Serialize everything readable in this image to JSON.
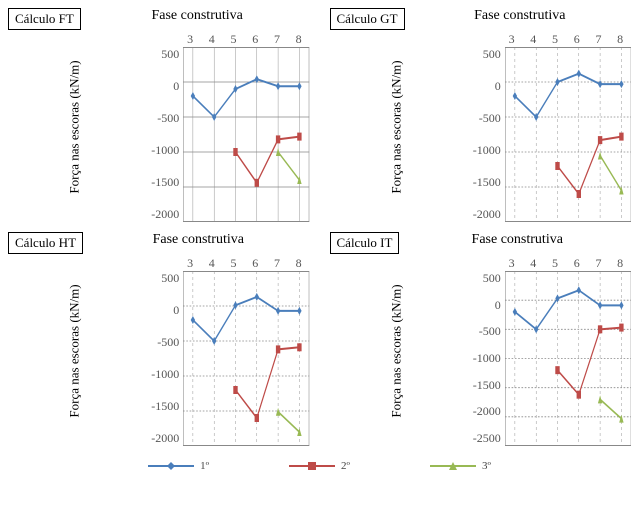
{
  "legend": {
    "labels": [
      "1º",
      "2º",
      "3º"
    ],
    "colors": {
      "s1": "#4a7ebb",
      "s2": "#be4b48",
      "s3": "#98b954"
    },
    "marker": {
      "s1": "diamond",
      "s2": "square",
      "s3": "triangle"
    }
  },
  "common": {
    "xlabel": "Fase construtiva",
    "ylabel": "Força nas escoras (kN/m)",
    "x": [
      3,
      4,
      5,
      6,
      7,
      8
    ],
    "axis_color": "#888888",
    "tick_color": "#595959",
    "grid_color": "#888888",
    "grid_dash": "3,3",
    "label_fontsize": 13,
    "tick_fontsize": 12,
    "badge_fontsize": 13,
    "line_width": 2,
    "marker_size": 5,
    "background": "#ffffff"
  },
  "panels": [
    {
      "id": "FT",
      "title": "Cálculo FT",
      "ylim": [
        -2000,
        500
      ],
      "ystep": 500,
      "grid_style": "solid",
      "series": [
        {
          "k": "s1",
          "pts": {
            "3": -200,
            "4": -500,
            "5": -100,
            "6": 40,
            "7": -60,
            "8": -60
          }
        },
        {
          "k": "s2",
          "pts": {
            "5": -1000,
            "6": -1440,
            "7": -820,
            "8": -780
          }
        },
        {
          "k": "s3",
          "pts": {
            "7": -1000,
            "8": -1400
          }
        }
      ]
    },
    {
      "id": "GT",
      "title": "Cálculo GT",
      "ylim": [
        -2000,
        500
      ],
      "ystep": 500,
      "grid_style": "dashed",
      "series": [
        {
          "k": "s1",
          "pts": {
            "3": -200,
            "4": -500,
            "5": 0,
            "6": 120,
            "7": -30,
            "8": -30
          }
        },
        {
          "k": "s2",
          "pts": {
            "5": -1200,
            "6": -1600,
            "7": -830,
            "8": -780
          }
        },
        {
          "k": "s3",
          "pts": {
            "7": -1050,
            "8": -1550
          }
        }
      ]
    },
    {
      "id": "HT",
      "title": "Cálculo HT",
      "ylim": [
        -2000,
        500
      ],
      "ystep": 500,
      "grid_style": "dashed",
      "series": [
        {
          "k": "s1",
          "pts": {
            "3": -200,
            "4": -500,
            "5": 10,
            "6": 130,
            "7": -70,
            "8": -70
          }
        },
        {
          "k": "s2",
          "pts": {
            "5": -1200,
            "6": -1600,
            "7": -620,
            "8": -590
          }
        },
        {
          "k": "s3",
          "pts": {
            "7": -1510,
            "8": -1800
          }
        }
      ]
    },
    {
      "id": "IT",
      "title": "Cálculo IT",
      "ylim": [
        -2500,
        500
      ],
      "ystep": 500,
      "grid_style": "dashed",
      "series": [
        {
          "k": "s1",
          "pts": {
            "3": -200,
            "4": -500,
            "5": 30,
            "6": 170,
            "7": -90,
            "8": -90
          }
        },
        {
          "k": "s2",
          "pts": {
            "5": -1200,
            "6": -1620,
            "7": -500,
            "8": -470
          }
        },
        {
          "k": "s3",
          "pts": {
            "7": -1700,
            "8": -2030
          }
        }
      ]
    }
  ]
}
